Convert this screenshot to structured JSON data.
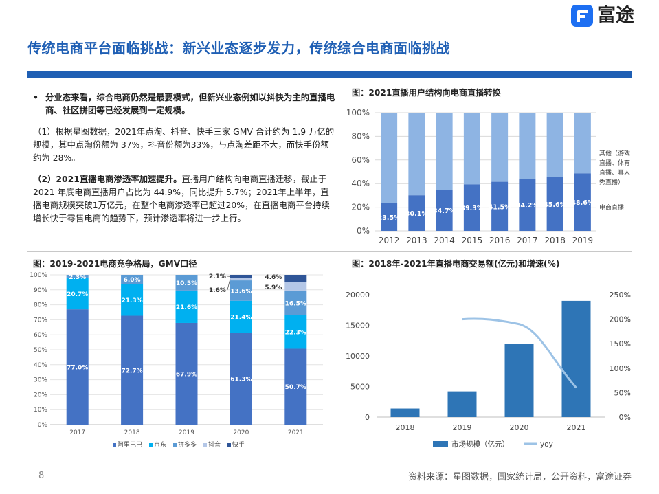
{
  "header": {
    "title": "传统电商平台面临挑战：新兴业态逐步发力，传统综合电商面临挑战",
    "logo_text": "富途"
  },
  "text": {
    "bullet_mark": "•",
    "bullet": "分业态来看，综合电商仍然是最要模式，但新兴业态例如以抖快为主的直播电商、社区拼团等已经发展到一定规模。",
    "p1": "（1）根据星图数据，2021年点淘、抖音、快手三家 GMV 合计约为 1.9 万亿的规模，其中点淘份额为 37%，抖音份额为33%，与点淘差距不大，而快手份额约为 28%。",
    "p2_bold": "（2）2021直播电商渗透率加速提升。",
    "p2_rest": "直播用户结构向电商直播迁移，截止于 2021 年底电商直播用户占比为 44.9%，同比提升 5.7%；2021年上半年，直播电商规模突破1万亿元，在整个电商渗透率已超过20%，在直播电商平台持续增长快于零售电商的趋势下，预计渗透率将进一步上行。"
  },
  "fig1_title": "图：2021直播用户结构向电商直播转换",
  "fig2_title": "图：2019-2021电商竞争格局，GMV口径",
  "fig3_title": "图：2018年-2021年直播电商交易额(亿元)和增速(%)",
  "footer": {
    "page": "8",
    "source": "资料来源：星图数据，国家统计局，公开资料，富途证券"
  },
  "colors": {
    "title": "#1f5fb4",
    "bar_dark": "#4472c4",
    "bar_light": "#8eb4e3",
    "ali": "#4472c4",
    "jd": "#00b0f0",
    "pdd": "#5b9bd5",
    "douyin": "#b4c7e7",
    "kuaishou": "#2f5597",
    "market_bar": "#2e75b6",
    "yoy_line": "#9dc3e6"
  },
  "chart_data": [
    {
      "type": "bar",
      "stacked": true,
      "categories": [
        "2012",
        "2013",
        "2014",
        "2015",
        "2016",
        "2017",
        "2018",
        "2019"
      ],
      "series": [
        {
          "name": "电商直播",
          "values": [
            23.5,
            30.1,
            34.7,
            39.3,
            41.5,
            44.2,
            45.6,
            48.6
          ],
          "labels": [
            "23.5%",
            "30.1%",
            "34.7%",
            "39.3%",
            "41.5%",
            "44.2%",
            "45.6%",
            "48.6%"
          ]
        },
        {
          "name": "其他（游戏直播、体育直播、真人秀直播）",
          "values": [
            76.5,
            69.9,
            65.3,
            60.7,
            58.5,
            55.8,
            54.4,
            51.4
          ]
        }
      ],
      "legend_right": [
        "其他（游戏",
        "直播、体育",
        "直播、真人",
        "秀直播）",
        "电商直播"
      ],
      "yticks": [
        "0%",
        "20%",
        "40%",
        "60%",
        "80%",
        "100%"
      ],
      "ylim": [
        0,
        100
      ],
      "grid": true
    },
    {
      "type": "bar",
      "stacked": true,
      "categories": [
        "2017",
        "2018",
        "2019",
        "2020",
        "2021"
      ],
      "series": [
        {
          "name": "阿里巴巴",
          "values": [
            77.0,
            72.7,
            67.9,
            61.3,
            50.7
          ],
          "labels": [
            "77.0%",
            "72.7%",
            "67.9%",
            "61.3%",
            "50.7%"
          ]
        },
        {
          "name": "京东",
          "values": [
            20.7,
            21.3,
            21.6,
            21.4,
            22.3
          ],
          "labels": [
            "20.7%",
            "21.3%",
            "21.6%",
            "21.4%",
            "22.3%"
          ]
        },
        {
          "name": "拼多多",
          "values": [
            2.3,
            6.0,
            10.5,
            13.6,
            16.5
          ],
          "labels": [
            "2.3%",
            "6.0%",
            "10.5%",
            "13.6%",
            "16.5%"
          ]
        },
        {
          "name": "抖音",
          "values": [
            0,
            0,
            0,
            1.6,
            5.9
          ],
          "labels": [
            "",
            "",
            "",
            "1.6%",
            "5.9%"
          ]
        },
        {
          "name": "快手",
          "values": [
            0,
            0,
            0,
            2.1,
            4.6
          ],
          "labels": [
            "",
            "",
            "",
            "2.1%",
            "4.6%"
          ]
        }
      ],
      "yticks": [
        "0%",
        "10%",
        "20%",
        "30%",
        "40%",
        "50%",
        "60%",
        "70%",
        "80%",
        "90%",
        "100%"
      ],
      "ylim": [
        0,
        100
      ],
      "legend_placement": "bottom",
      "grid": true
    },
    {
      "type": "bar",
      "categories": [
        "2018",
        "2019",
        "2020",
        "2021"
      ],
      "series": [
        {
          "name": "市场规模（亿元）",
          "values": [
            1400,
            4200,
            12000,
            19000
          ],
          "axis": "left"
        },
        {
          "name": "yoy",
          "type": "line",
          "values": [
            null,
            200,
            190,
            60
          ],
          "axis": "right"
        }
      ],
      "yticks_left": [
        "0",
        "5000",
        "10000",
        "15000",
        "20000"
      ],
      "ylim_left": [
        0,
        20000
      ],
      "yticks_right": [
        "0%",
        "50%",
        "100%",
        "150%",
        "200%",
        "250%"
      ],
      "ylim_right": [
        0,
        250
      ],
      "legend_placement": "bottom",
      "grid": false
    }
  ]
}
